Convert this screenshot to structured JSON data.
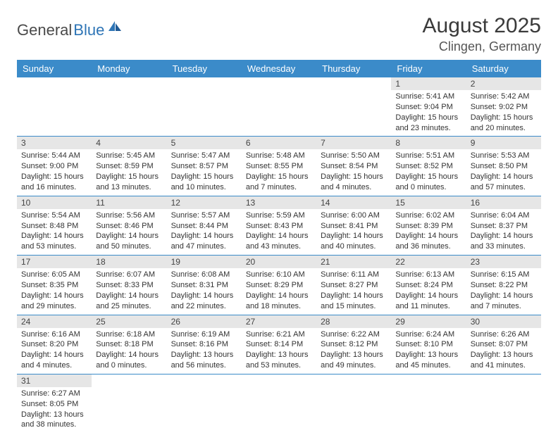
{
  "logo": {
    "textGray": "General",
    "textBlue": "Blue"
  },
  "title": "August 2025",
  "location": "Clingen, Germany",
  "colors": {
    "headerBg": "#3b8bc9",
    "headerText": "#ffffff",
    "dayNumBg": "#e6e6e6",
    "gridLine": "#3b8bc9",
    "logoGray": "#4a4a4a",
    "logoBlue": "#2e75b6"
  },
  "weekdays": [
    "Sunday",
    "Monday",
    "Tuesday",
    "Wednesday",
    "Thursday",
    "Friday",
    "Saturday"
  ],
  "weeks": [
    [
      null,
      null,
      null,
      null,
      null,
      {
        "n": "1",
        "sunrise": "Sunrise: 5:41 AM",
        "sunset": "Sunset: 9:04 PM",
        "daylight": "Daylight: 15 hours and 23 minutes."
      },
      {
        "n": "2",
        "sunrise": "Sunrise: 5:42 AM",
        "sunset": "Sunset: 9:02 PM",
        "daylight": "Daylight: 15 hours and 20 minutes."
      }
    ],
    [
      {
        "n": "3",
        "sunrise": "Sunrise: 5:44 AM",
        "sunset": "Sunset: 9:00 PM",
        "daylight": "Daylight: 15 hours and 16 minutes."
      },
      {
        "n": "4",
        "sunrise": "Sunrise: 5:45 AM",
        "sunset": "Sunset: 8:59 PM",
        "daylight": "Daylight: 15 hours and 13 minutes."
      },
      {
        "n": "5",
        "sunrise": "Sunrise: 5:47 AM",
        "sunset": "Sunset: 8:57 PM",
        "daylight": "Daylight: 15 hours and 10 minutes."
      },
      {
        "n": "6",
        "sunrise": "Sunrise: 5:48 AM",
        "sunset": "Sunset: 8:55 PM",
        "daylight": "Daylight: 15 hours and 7 minutes."
      },
      {
        "n": "7",
        "sunrise": "Sunrise: 5:50 AM",
        "sunset": "Sunset: 8:54 PM",
        "daylight": "Daylight: 15 hours and 4 minutes."
      },
      {
        "n": "8",
        "sunrise": "Sunrise: 5:51 AM",
        "sunset": "Sunset: 8:52 PM",
        "daylight": "Daylight: 15 hours and 0 minutes."
      },
      {
        "n": "9",
        "sunrise": "Sunrise: 5:53 AM",
        "sunset": "Sunset: 8:50 PM",
        "daylight": "Daylight: 14 hours and 57 minutes."
      }
    ],
    [
      {
        "n": "10",
        "sunrise": "Sunrise: 5:54 AM",
        "sunset": "Sunset: 8:48 PM",
        "daylight": "Daylight: 14 hours and 53 minutes."
      },
      {
        "n": "11",
        "sunrise": "Sunrise: 5:56 AM",
        "sunset": "Sunset: 8:46 PM",
        "daylight": "Daylight: 14 hours and 50 minutes."
      },
      {
        "n": "12",
        "sunrise": "Sunrise: 5:57 AM",
        "sunset": "Sunset: 8:44 PM",
        "daylight": "Daylight: 14 hours and 47 minutes."
      },
      {
        "n": "13",
        "sunrise": "Sunrise: 5:59 AM",
        "sunset": "Sunset: 8:43 PM",
        "daylight": "Daylight: 14 hours and 43 minutes."
      },
      {
        "n": "14",
        "sunrise": "Sunrise: 6:00 AM",
        "sunset": "Sunset: 8:41 PM",
        "daylight": "Daylight: 14 hours and 40 minutes."
      },
      {
        "n": "15",
        "sunrise": "Sunrise: 6:02 AM",
        "sunset": "Sunset: 8:39 PM",
        "daylight": "Daylight: 14 hours and 36 minutes."
      },
      {
        "n": "16",
        "sunrise": "Sunrise: 6:04 AM",
        "sunset": "Sunset: 8:37 PM",
        "daylight": "Daylight: 14 hours and 33 minutes."
      }
    ],
    [
      {
        "n": "17",
        "sunrise": "Sunrise: 6:05 AM",
        "sunset": "Sunset: 8:35 PM",
        "daylight": "Daylight: 14 hours and 29 minutes."
      },
      {
        "n": "18",
        "sunrise": "Sunrise: 6:07 AM",
        "sunset": "Sunset: 8:33 PM",
        "daylight": "Daylight: 14 hours and 25 minutes."
      },
      {
        "n": "19",
        "sunrise": "Sunrise: 6:08 AM",
        "sunset": "Sunset: 8:31 PM",
        "daylight": "Daylight: 14 hours and 22 minutes."
      },
      {
        "n": "20",
        "sunrise": "Sunrise: 6:10 AM",
        "sunset": "Sunset: 8:29 PM",
        "daylight": "Daylight: 14 hours and 18 minutes."
      },
      {
        "n": "21",
        "sunrise": "Sunrise: 6:11 AM",
        "sunset": "Sunset: 8:27 PM",
        "daylight": "Daylight: 14 hours and 15 minutes."
      },
      {
        "n": "22",
        "sunrise": "Sunrise: 6:13 AM",
        "sunset": "Sunset: 8:24 PM",
        "daylight": "Daylight: 14 hours and 11 minutes."
      },
      {
        "n": "23",
        "sunrise": "Sunrise: 6:15 AM",
        "sunset": "Sunset: 8:22 PM",
        "daylight": "Daylight: 14 hours and 7 minutes."
      }
    ],
    [
      {
        "n": "24",
        "sunrise": "Sunrise: 6:16 AM",
        "sunset": "Sunset: 8:20 PM",
        "daylight": "Daylight: 14 hours and 4 minutes."
      },
      {
        "n": "25",
        "sunrise": "Sunrise: 6:18 AM",
        "sunset": "Sunset: 8:18 PM",
        "daylight": "Daylight: 14 hours and 0 minutes."
      },
      {
        "n": "26",
        "sunrise": "Sunrise: 6:19 AM",
        "sunset": "Sunset: 8:16 PM",
        "daylight": "Daylight: 13 hours and 56 minutes."
      },
      {
        "n": "27",
        "sunrise": "Sunrise: 6:21 AM",
        "sunset": "Sunset: 8:14 PM",
        "daylight": "Daylight: 13 hours and 53 minutes."
      },
      {
        "n": "28",
        "sunrise": "Sunrise: 6:22 AM",
        "sunset": "Sunset: 8:12 PM",
        "daylight": "Daylight: 13 hours and 49 minutes."
      },
      {
        "n": "29",
        "sunrise": "Sunrise: 6:24 AM",
        "sunset": "Sunset: 8:10 PM",
        "daylight": "Daylight: 13 hours and 45 minutes."
      },
      {
        "n": "30",
        "sunrise": "Sunrise: 6:26 AM",
        "sunset": "Sunset: 8:07 PM",
        "daylight": "Daylight: 13 hours and 41 minutes."
      }
    ],
    [
      {
        "n": "31",
        "sunrise": "Sunrise: 6:27 AM",
        "sunset": "Sunset: 8:05 PM",
        "daylight": "Daylight: 13 hours and 38 minutes."
      },
      null,
      null,
      null,
      null,
      null,
      null
    ]
  ]
}
